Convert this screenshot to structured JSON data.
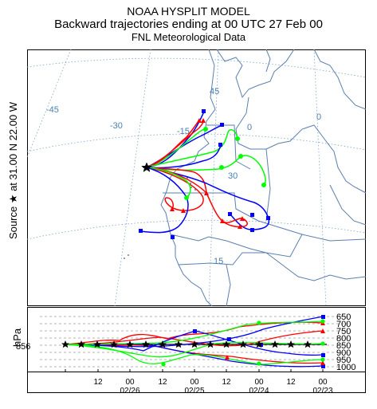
{
  "header": {
    "title": "NOAA HYSPLIT MODEL",
    "subtitle": "Backward trajectories ending at 00 UTC 27 Feb 00",
    "meteo": "FNL  Meteorological Data"
  },
  "source": {
    "label": "Source ★ at 31.00 N 22.00 W",
    "lat": 31.0,
    "lon": -22.0
  },
  "map": {
    "graticule_labels": [
      "-45",
      "-30",
      "-15",
      "45",
      "30",
      "15",
      "0"
    ],
    "colors": {
      "coast": "#5b7fae",
      "grid": "#7ba3cc",
      "label": "#4a7fb0"
    }
  },
  "levels_panel": {
    "axis_title": "hPa",
    "start_level": "856",
    "pressure_levels": [
      "650",
      "700",
      "750",
      "800",
      "850",
      "900",
      "950",
      "1000"
    ],
    "time_ticks": [
      "12",
      "00",
      "12",
      "00",
      "12",
      "00",
      "12",
      "00"
    ],
    "date_labels": [
      "02/26",
      "02/25",
      "02/24",
      "02/23"
    ]
  },
  "series": [
    {
      "color": "#0000ff",
      "marker": "square"
    },
    {
      "color": "#ff0000",
      "marker": "triangle"
    },
    {
      "color": "#00ff00",
      "marker": "circle"
    }
  ]
}
